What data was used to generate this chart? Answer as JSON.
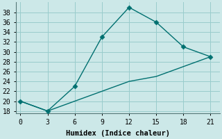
{
  "xlabel": "Humidex (Indice chaleur)",
  "ylabel": "",
  "background_color": "#cce8e8",
  "grid_color": "#99cccc",
  "line_color": "#007070",
  "line1_x": [
    0,
    3,
    6,
    9,
    12,
    15,
    18,
    21
  ],
  "line1_y": [
    20,
    18,
    23,
    33,
    39,
    36,
    31,
    29
  ],
  "line2_x": [
    0,
    3,
    6,
    9,
    12,
    15,
    18,
    21
  ],
  "line2_y": [
    20,
    18,
    20,
    22,
    24,
    25,
    27,
    29
  ],
  "xlim": [
    -0.5,
    22
  ],
  "ylim": [
    17.5,
    40
  ],
  "xticks": [
    0,
    3,
    6,
    9,
    12,
    15,
    18,
    21
  ],
  "yticks": [
    18,
    20,
    22,
    24,
    26,
    28,
    30,
    32,
    34,
    36,
    38
  ],
  "marker": "D",
  "markersize": 3.5,
  "linewidth": 1.0,
  "xlabel_fontsize": 7.5,
  "tick_fontsize": 7
}
